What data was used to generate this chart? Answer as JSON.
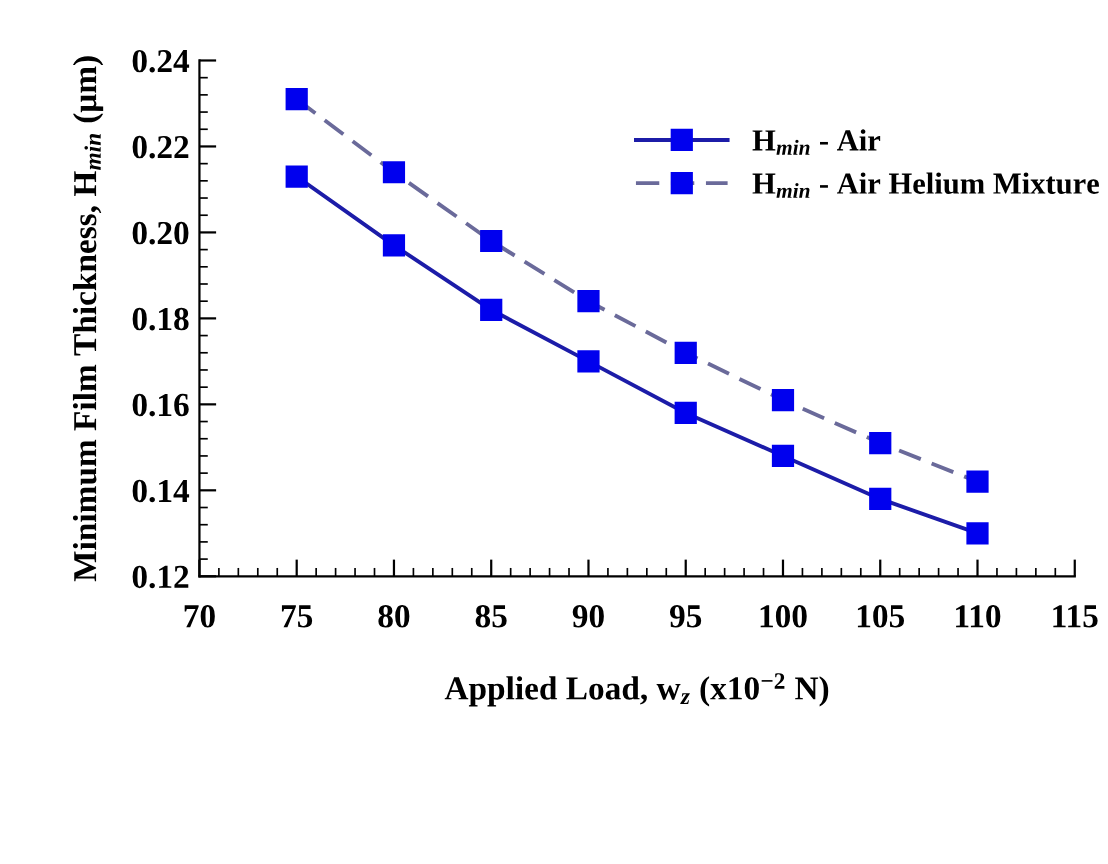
{
  "chart_data": {
    "type": "line",
    "xlabel": "Applied Load, w$_{z}$ (x10$^{−2}$ N)",
    "ylabel": "Minimum Film Thickness, H$_{min}$ (μm)",
    "x": [
      75,
      80,
      85,
      90,
      95,
      100,
      105,
      110
    ],
    "series": [
      {
        "name": "H$_{min}$ - Air",
        "color": "#0000ee",
        "line_style": "solid",
        "values": [
          0.213,
          0.197,
          0.182,
          0.17,
          0.158,
          0.148,
          0.138,
          0.13
        ]
      },
      {
        "name": "H$_{min}$ - Air Helium Mixture",
        "color": "#0000ee",
        "line_style": "dashed",
        "values": [
          0.231,
          0.214,
          0.198,
          0.184,
          0.172,
          0.161,
          0.151,
          0.142
        ]
      }
    ],
    "xlim": [
      70,
      115
    ],
    "xticks": [
      70,
      75,
      80,
      85,
      90,
      95,
      100,
      105,
      110,
      115
    ],
    "ylim": [
      0.12,
      0.24
    ],
    "yticks": [
      {
        "value": 0.12,
        "label": "0.12"
      },
      {
        "value": 0.14,
        "label": "0.14"
      },
      {
        "value": 0.16,
        "label": "0.16"
      },
      {
        "value": 0.18,
        "label": "0.18"
      },
      {
        "value": 0.2,
        "label": "0.20"
      },
      {
        "value": 0.22,
        "label": "0.22"
      },
      {
        "value": 0.24,
        "label": "0.24"
      }
    ],
    "marker": "square",
    "grid": false,
    "legend": "top right"
  }
}
